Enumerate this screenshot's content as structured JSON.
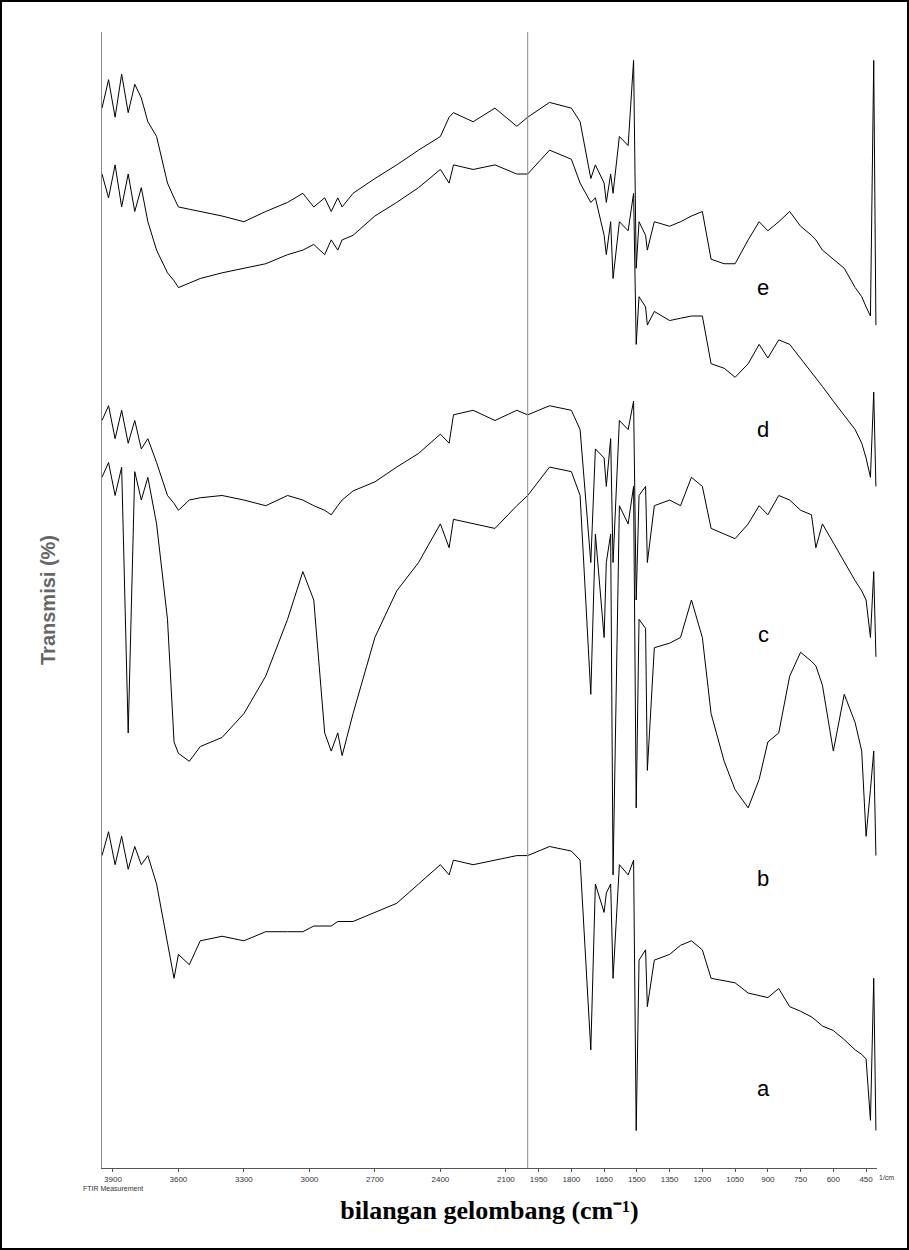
{
  "chart_data": {
    "type": "line",
    "x_label": "bilangan gelombang (cm⁻¹)",
    "y_label": "Transmisi (%)",
    "xlim": [
      3950,
      400
    ],
    "xticks": [
      3900,
      3600,
      3300,
      3000,
      2700,
      2400,
      2100,
      1950,
      1800,
      1650,
      1500,
      1350,
      1200,
      1050,
      900,
      750,
      600,
      450
    ],
    "ylim": [
      0,
      100
    ],
    "tick_labels": "x",
    "grid": false,
    "color": "#000000",
    "reference_lines": [
      2000
    ],
    "annotations": [
      {
        "text": "FTIR Measurement",
        "x": 3900
      },
      {
        "text": "1/cm",
        "x": 400
      },
      {
        "text": "e",
        "x": 920,
        "y": 77.5
      },
      {
        "text": "d",
        "x": 920,
        "y": 65
      },
      {
        "text": "c",
        "x": 920,
        "y": 47
      },
      {
        "text": "b",
        "x": 920,
        "y": 25.5
      },
      {
        "text": "a",
        "x": 920,
        "y": 7
      }
    ],
    "x": [
      3950,
      3920,
      3890,
      3860,
      3830,
      3800,
      3770,
      3740,
      3700,
      3650,
      3620,
      3600,
      3550,
      3500,
      3400,
      3300,
      3200,
      3100,
      3030,
      2980,
      2930,
      2900,
      2870,
      2850,
      2800,
      2700,
      2600,
      2500,
      2400,
      2360,
      2340,
      2250,
      2150,
      2050,
      2000,
      1900,
      1800,
      1760,
      1711,
      1690,
      1650,
      1640,
      1620,
      1609,
      1580,
      1540,
      1515,
      1503,
      1490,
      1460,
      1452,
      1420,
      1350,
      1300,
      1250,
      1200,
      1160,
      1100,
      1050,
      990,
      940,
      900,
      850,
      800,
      750,
      700,
      680,
      650,
      600,
      550,
      500,
      470,
      450,
      430,
      415,
      405
    ],
    "series": [
      {
        "values": [
          93.3,
          95.8,
          92.5,
          96.3,
          92.9,
          95.4,
          94.2,
          92.1,
          90.8,
          86.7,
          85.4,
          84.6,
          84.4,
          84.2,
          83.8,
          83.3,
          84.2,
          85,
          85.8,
          84.6,
          85.4,
          84.2,
          85.4,
          84.6,
          85.8,
          87.1,
          88.3,
          89.6,
          90.8,
          92.5,
          92.9,
          92.1,
          93.3,
          91.7,
          92.5,
          93.8,
          93.3,
          92.1,
          87.1,
          88.3,
          86.7,
          85,
          87.5,
          85.8,
          90.8,
          90,
          97.5,
          79.2,
          83.3,
          82.1,
          80.8,
          83.3,
          82.9,
          83.3,
          83.8,
          84.2,
          80,
          79.6,
          79.6,
          81.7,
          83.3,
          82.5,
          83.3,
          84.2,
          82.9,
          82.1,
          81.7,
          80.8,
          80,
          79.2,
          77.5,
          76.7,
          75.8,
          75,
          97.5,
          74.2
        ]
      },
      {
        "values": [
          87.5,
          85.4,
          88.3,
          84.6,
          87.5,
          84.2,
          86.3,
          83.3,
          80.8,
          78.8,
          78.1,
          77.5,
          77.9,
          78.3,
          78.8,
          79.2,
          79.6,
          80.4,
          80.8,
          81.3,
          80.4,
          81.7,
          80.8,
          81.7,
          82.1,
          83.8,
          85,
          86.3,
          87.9,
          86.7,
          88.3,
          87.9,
          88.3,
          87.5,
          87.5,
          89.6,
          88.8,
          86.7,
          85,
          85.4,
          82.1,
          80.4,
          83.3,
          78.3,
          83.3,
          82.5,
          85.8,
          72.5,
          76.7,
          75.8,
          74.2,
          75.4,
          74.6,
          74.8,
          75,
          75,
          70.8,
          70.4,
          69.6,
          70.8,
          72.5,
          71.3,
          72.9,
          72.5,
          71.3,
          70,
          69.6,
          68.8,
          67.5,
          66.3,
          65,
          63.8,
          62.5,
          60.8,
          68.3,
          60
        ]
      },
      {
        "values": [
          65.8,
          67.1,
          64.2,
          66.7,
          63.8,
          65.8,
          63.3,
          64.2,
          62.1,
          59.2,
          58.5,
          57.9,
          58.8,
          59,
          59.2,
          58.8,
          58.3,
          59.2,
          58.8,
          58.3,
          57.9,
          57.5,
          58.3,
          58.8,
          59.6,
          60.4,
          61.7,
          62.9,
          64.6,
          63.8,
          66.3,
          66.7,
          65.8,
          66.7,
          66.3,
          67.1,
          66.7,
          65,
          53.3,
          63.3,
          62.5,
          60,
          64.2,
          53.3,
          65.8,
          65,
          67.5,
          50,
          59.2,
          60,
          53.3,
          58.3,
          58.8,
          58.3,
          60.8,
          60,
          56.3,
          55.8,
          55.4,
          56.7,
          58.3,
          57.5,
          59.2,
          58.8,
          57.9,
          57.5,
          54.6,
          56.7,
          55,
          53.3,
          51.7,
          50.8,
          50,
          46.7,
          52.5,
          45
        ]
      },
      {
        "values": [
          60.8,
          62.1,
          59.2,
          61.7,
          38.3,
          61.3,
          58.8,
          60.8,
          56.7,
          48.3,
          37.5,
          36.5,
          35.8,
          37.1,
          37.9,
          40,
          43.3,
          48.3,
          52.5,
          50,
          38.3,
          36.7,
          38.3,
          36.3,
          40,
          46.7,
          50.8,
          53.3,
          56.7,
          54.6,
          57.1,
          56.7,
          56.3,
          58.3,
          59.2,
          61.7,
          61.3,
          59.2,
          41.7,
          55.8,
          46.7,
          53.3,
          55.8,
          25.8,
          58.3,
          56.7,
          60,
          31.7,
          48.3,
          47.5,
          35,
          45.8,
          46.2,
          46.7,
          50,
          46.7,
          40,
          35.8,
          33.3,
          31.7,
          34.2,
          37.5,
          38.3,
          43.3,
          45.4,
          44.6,
          44.2,
          42.5,
          36.7,
          41.7,
          39.2,
          36.7,
          29.2,
          33.3,
          36.7,
          27.5
        ]
      },
      {
        "values": [
          27.5,
          29.6,
          26.7,
          29.2,
          26.3,
          28.3,
          26.7,
          27.5,
          25,
          20,
          16.7,
          18.8,
          17.9,
          20,
          20.4,
          20,
          20.8,
          20.8,
          20.8,
          21.3,
          21.3,
          21.3,
          21.7,
          21.7,
          21.7,
          22.5,
          23.3,
          25,
          26.7,
          25.8,
          27.1,
          26.7,
          27.1,
          27.5,
          27.5,
          28.3,
          27.9,
          27.1,
          10.4,
          25,
          22.5,
          24.2,
          25,
          16.7,
          26.7,
          25.8,
          27.1,
          3.3,
          18.3,
          19.2,
          14.2,
          18.3,
          18.8,
          19.6,
          20,
          19.2,
          16.7,
          16.5,
          16.3,
          15.4,
          15.2,
          15,
          15.8,
          14.2,
          13.8,
          13.3,
          13,
          12.5,
          12.1,
          11.3,
          10.4,
          10,
          9.6,
          4.2,
          16.7,
          3.3
        ]
      }
    ]
  }
}
